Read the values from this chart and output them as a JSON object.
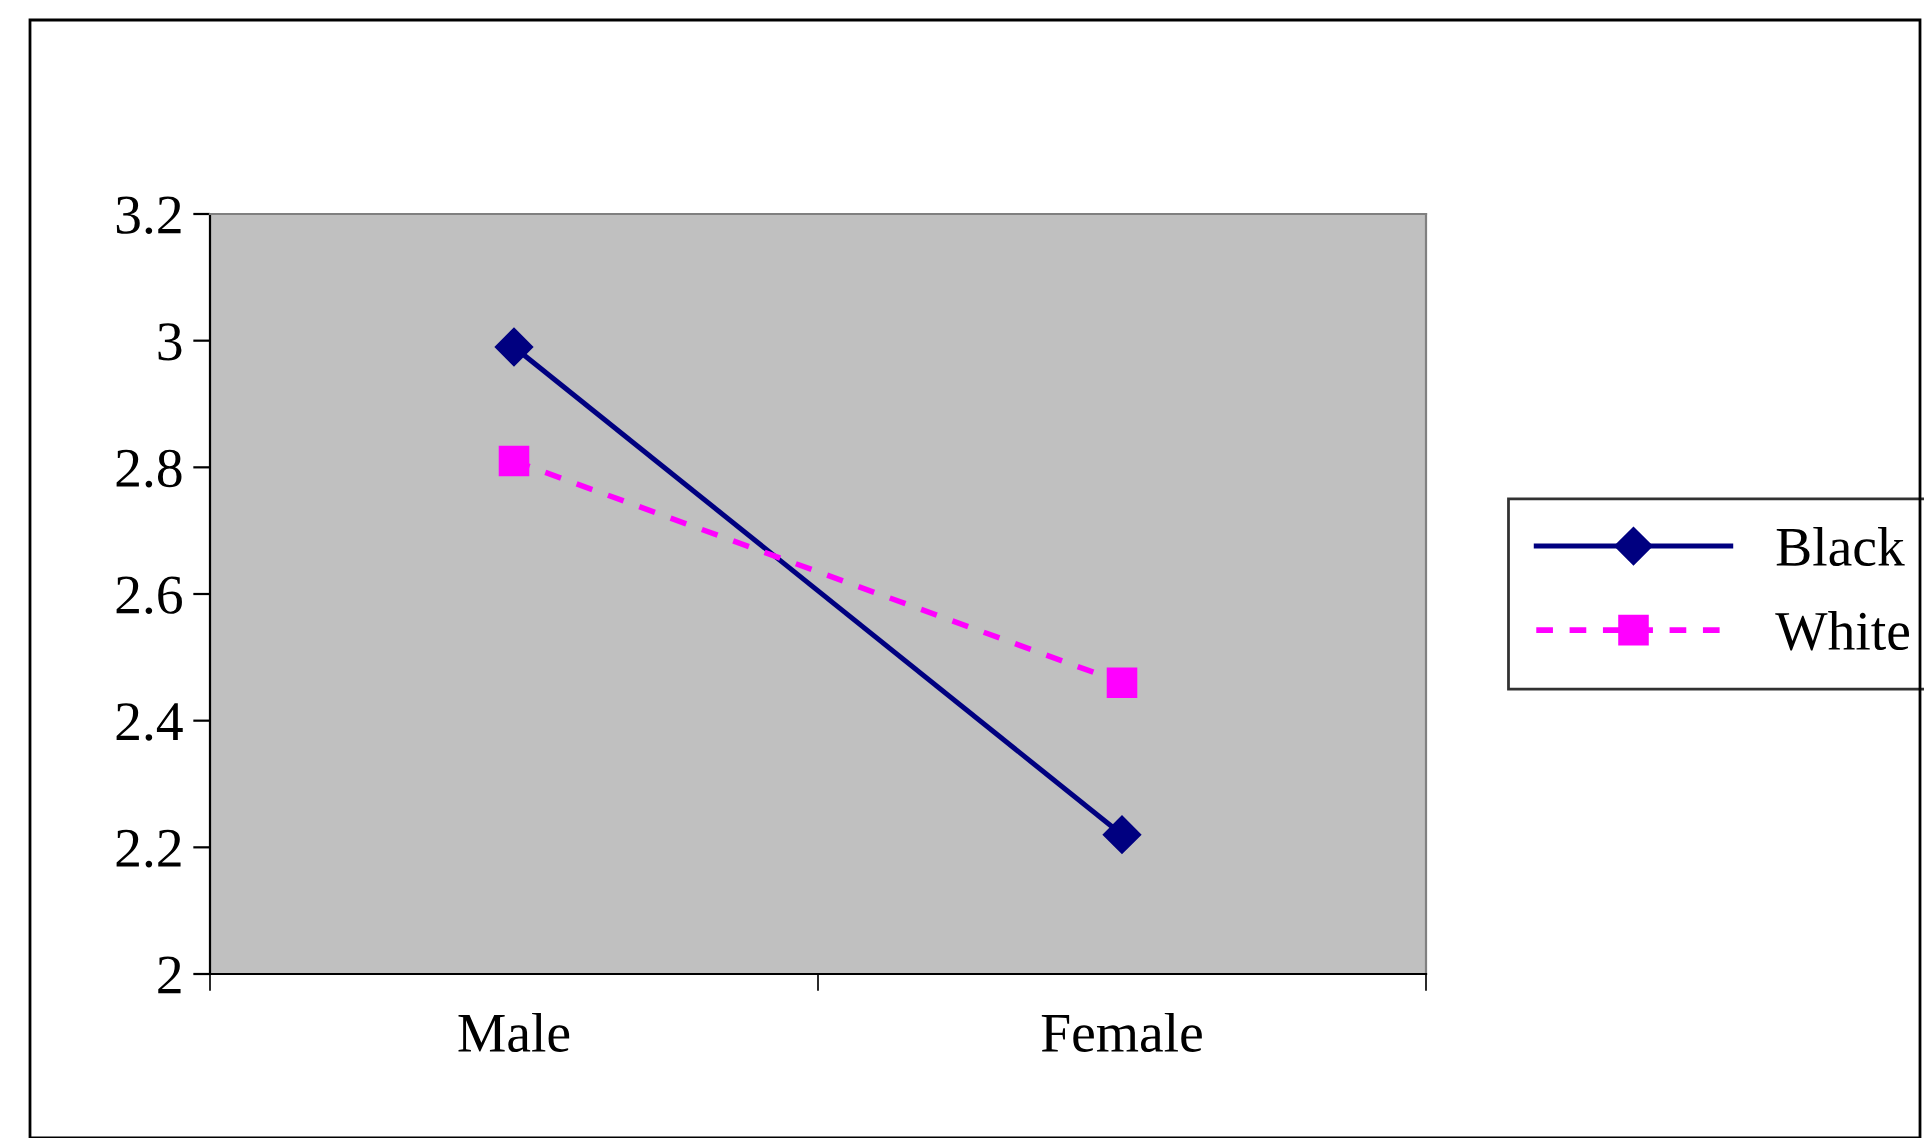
{
  "chart_data": {
    "type": "line",
    "categories": [
      "Male",
      "Female"
    ],
    "series": [
      {
        "name": "Black",
        "color": "#000080",
        "values": [
          2.99,
          2.22
        ],
        "marker": "diamond",
        "line_style": "solid"
      },
      {
        "name": "White",
        "color": "#ff00ff",
        "values": [
          2.81,
          2.46
        ],
        "marker": "square",
        "line_style": "dashed"
      }
    ],
    "ylim": [
      2,
      3.2
    ],
    "yticks": [
      2,
      2.2,
      2.4,
      2.6,
      2.8,
      3,
      3.2
    ],
    "grid": false,
    "legend": "right"
  }
}
